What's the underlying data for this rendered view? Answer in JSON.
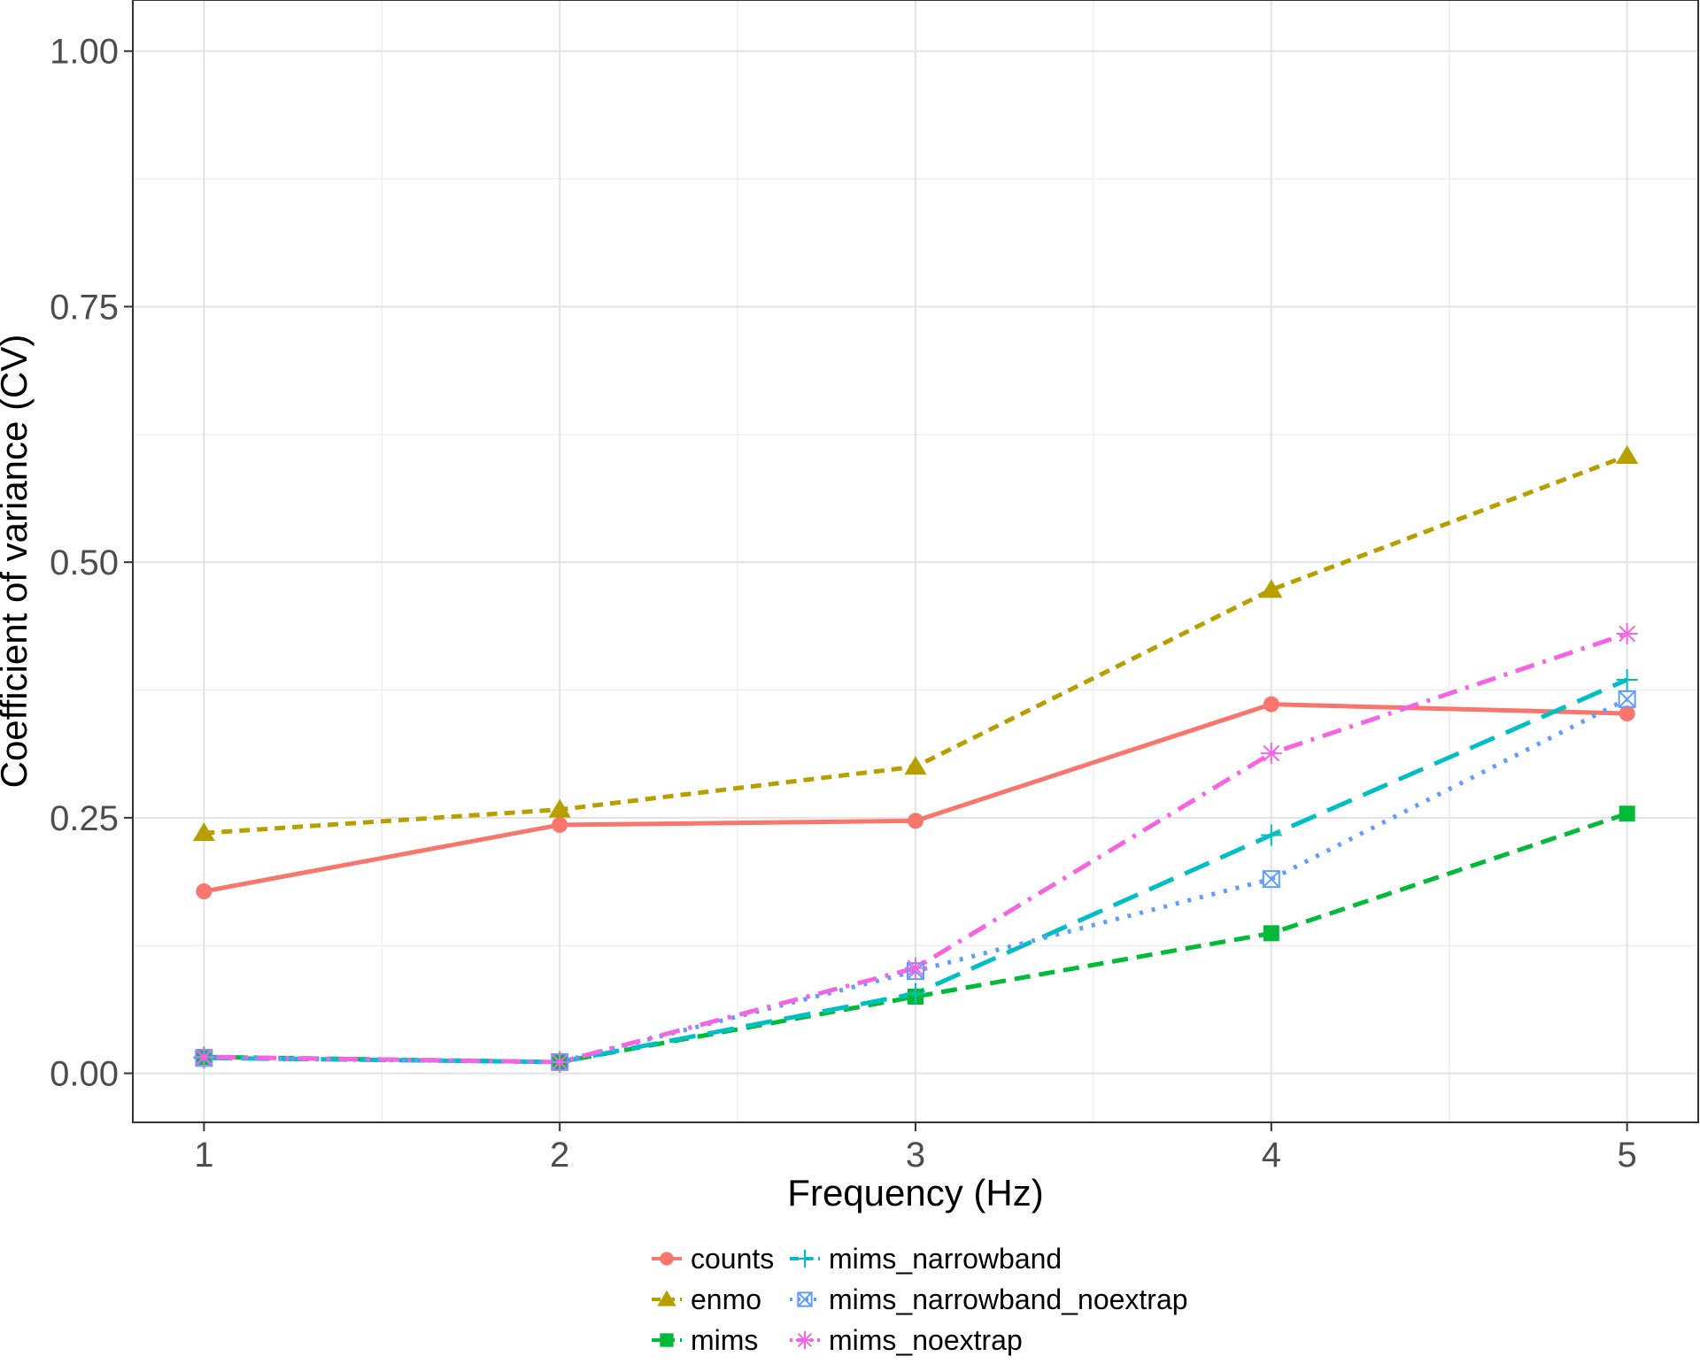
{
  "chart_data": {
    "type": "line",
    "title": "",
    "xlabel": "Frequency (Hz)",
    "ylabel": "Coefficient of variance (CV)",
    "x": [
      1,
      2,
      3,
      4,
      5
    ],
    "x_ticks": [
      "1",
      "2",
      "3",
      "4",
      "5"
    ],
    "xlim": [
      0.8,
      5.2
    ],
    "ylim": [
      -0.048,
      1.05
    ],
    "y_ticks": [
      "0.00",
      "0.25",
      "0.50",
      "0.75",
      "1.00"
    ],
    "grid": true,
    "legend_position": "bottom",
    "series": [
      {
        "name": "counts",
        "values": [
          0.178,
          0.243,
          0.247,
          0.361,
          0.352
        ],
        "color": "#F8766D",
        "marker": "circle",
        "dash": "solid"
      },
      {
        "name": "enmo",
        "values": [
          0.235,
          0.258,
          0.3,
          0.473,
          0.604
        ],
        "color": "#B79F00",
        "marker": "triangle",
        "dash": "short-dashed"
      },
      {
        "name": "mims",
        "values": [
          0.016,
          0.011,
          0.075,
          0.137,
          0.254
        ],
        "color": "#00BA38",
        "marker": "square",
        "dash": "dashed"
      },
      {
        "name": "mims_narrowband",
        "values": [
          0.015,
          0.011,
          0.078,
          0.233,
          0.385
        ],
        "color": "#00BFC4",
        "marker": "plus",
        "dash": "long-dashed"
      },
      {
        "name": "mims_narrowband_noextrap",
        "values": [
          0.015,
          0.011,
          0.1,
          0.19,
          0.366
        ],
        "color": "#619CFF",
        "marker": "square-cross",
        "dash": "dotted"
      },
      {
        "name": "mims_noextrap",
        "values": [
          0.016,
          0.011,
          0.103,
          0.313,
          0.43
        ],
        "color": "#F564E3",
        "marker": "asterisk",
        "dash": "dot-dash"
      }
    ]
  }
}
